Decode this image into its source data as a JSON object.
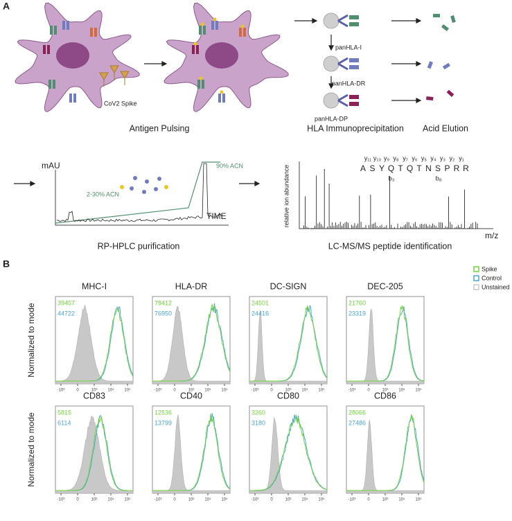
{
  "panel_a": {
    "label": "A",
    "spike_label": "CoV2 Spike",
    "pulsing_label": "Antigen Pulsing",
    "antibodies": [
      "panHLA-I",
      "panHLA-DR",
      "panHLA-DP"
    ],
    "ip_label": "HLA Immunoprecipitation",
    "elution_label": "Acid Elution",
    "hplc": {
      "y_label": "mAU",
      "x_label": "TIME",
      "high_label": "90% ACN",
      "low_label": "2-30% ACN",
      "caption": "RP-HPLC purification"
    },
    "ms": {
      "y_label": "relative ion abundance",
      "x_label": "m/z",
      "caption": "LC-MS/MS peptide identification",
      "peptide": [
        "A",
        "S",
        "Y",
        "Q",
        "T",
        "Q",
        "T",
        "N",
        "S",
        "P",
        "R",
        "R"
      ],
      "y_ions": [
        "y₁₁",
        "y₁₀",
        "y₉",
        "y₈",
        "y₇",
        "y₆",
        "y₅",
        "y₄",
        "y₃",
        "y₂",
        "y₁"
      ],
      "b_ions": [
        "b₃",
        "b₈"
      ]
    }
  },
  "panel_b": {
    "label": "B",
    "legend": [
      {
        "name": "Spike",
        "color": "#72d33b"
      },
      {
        "name": "Control",
        "color": "#4aa6d6"
      },
      {
        "name": "Unstained",
        "color": "#c8c8c8"
      }
    ],
    "y_label": "Normalized to mode",
    "x_ticks": [
      "-10³",
      "0",
      "10³",
      "10⁴",
      "10⁵"
    ],
    "plots": [
      {
        "title": "MHC-I",
        "spike": 39457,
        "control": 44722
      },
      {
        "title": "HLA-DR",
        "spike": 78412,
        "control": 76950
      },
      {
        "title": "DC-SIGN",
        "spike": 24501,
        "control": 24416
      },
      {
        "title": "DEC-205",
        "spike": 21760,
        "control": 23319
      },
      {
        "title": "CD83",
        "spike": 5815,
        "control": 6114
      },
      {
        "title": "CD40",
        "spike": 12536,
        "control": 13799
      },
      {
        "title": "CD80",
        "spike": 3260,
        "control": 3180
      },
      {
        "title": "CD86",
        "spike": 28066,
        "control": 27486
      }
    ]
  }
}
